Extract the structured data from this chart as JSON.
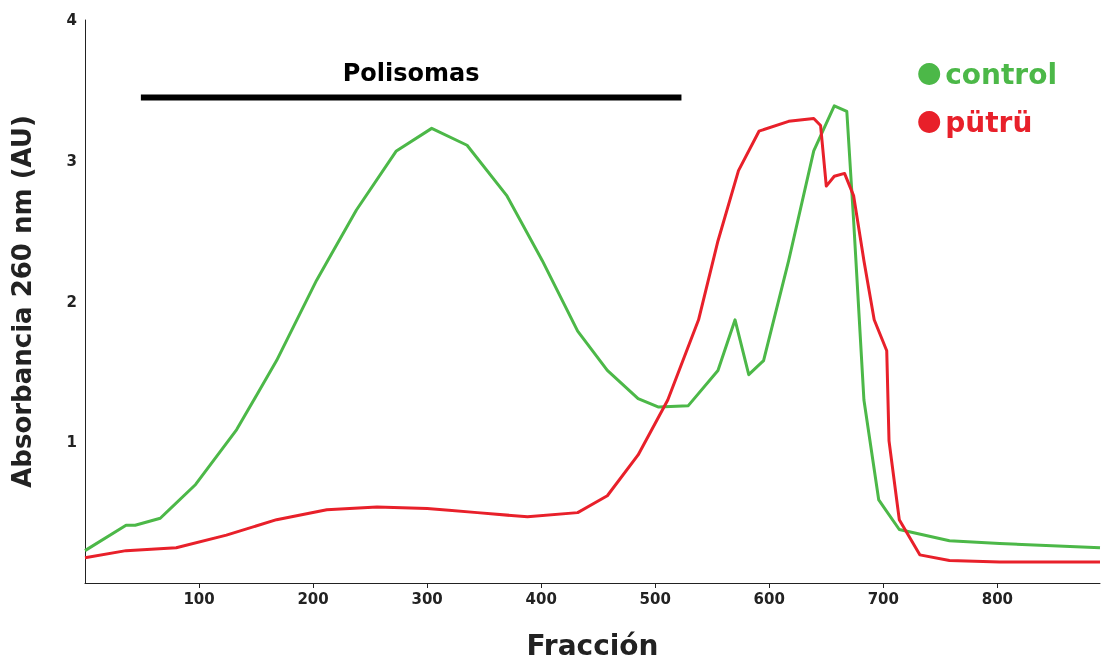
{
  "chart_data": {
    "type": "line",
    "xlabel": "Fracción",
    "ylabel": "Absorbancia 260 nm (AU)",
    "xlim": [
      0,
      890
    ],
    "ylim": [
      0,
      4
    ],
    "xticks": [
      100,
      200,
      300,
      400,
      500,
      600,
      700,
      800
    ],
    "yticks": [
      1,
      2,
      3,
      4
    ],
    "grid": false,
    "legend": "top right",
    "marker": "none",
    "line_style": "solid",
    "annotations": [
      {
        "text": "Polisomas",
        "x": 286,
        "y": 3.45
      }
    ],
    "series": [
      {
        "name": "control",
        "color": "#4cb848",
        "x": [
          0,
          36,
          44,
          66,
          97,
          133,
          168,
          203,
          238,
          273,
          304,
          335,
          370,
          401,
          432,
          458,
          485,
          503,
          529,
          555,
          570,
          582,
          595,
          617,
          639,
          657,
          668,
          674,
          683,
          696,
          714,
          758,
          802,
          890
        ],
        "values": [
          0.23,
          0.41,
          0.41,
          0.46,
          0.7,
          1.09,
          1.58,
          2.15,
          2.65,
          3.07,
          3.23,
          3.11,
          2.75,
          2.29,
          1.79,
          1.51,
          1.31,
          1.25,
          1.26,
          1.51,
          1.87,
          1.48,
          1.58,
          2.29,
          3.07,
          3.39,
          3.35,
          2.57,
          1.3,
          0.59,
          0.38,
          0.3,
          0.28,
          0.25
        ]
      },
      {
        "name": "pütrü",
        "color": "#e8202a",
        "x": [
          0,
          36,
          80,
          124,
          168,
          212,
          256,
          300,
          344,
          388,
          432,
          458,
          485,
          511,
          538,
          555,
          573,
          591,
          617,
          639,
          645,
          650,
          657,
          666,
          674,
          683,
          692,
          703,
          705,
          714,
          732,
          758,
          802,
          890
        ],
        "values": [
          0.18,
          0.23,
          0.25,
          0.34,
          0.45,
          0.52,
          0.54,
          0.53,
          0.5,
          0.47,
          0.5,
          0.62,
          0.91,
          1.3,
          1.87,
          2.43,
          2.93,
          3.21,
          3.28,
          3.3,
          3.25,
          2.82,
          2.89,
          2.91,
          2.75,
          2.29,
          1.87,
          1.65,
          1.01,
          0.45,
          0.2,
          0.16,
          0.15,
          0.15
        ]
      },
      {
        "color": "#000000",
        "x": [
          49,
          523
        ],
        "values": [
          3.45,
          3.45
        ]
      }
    ]
  }
}
